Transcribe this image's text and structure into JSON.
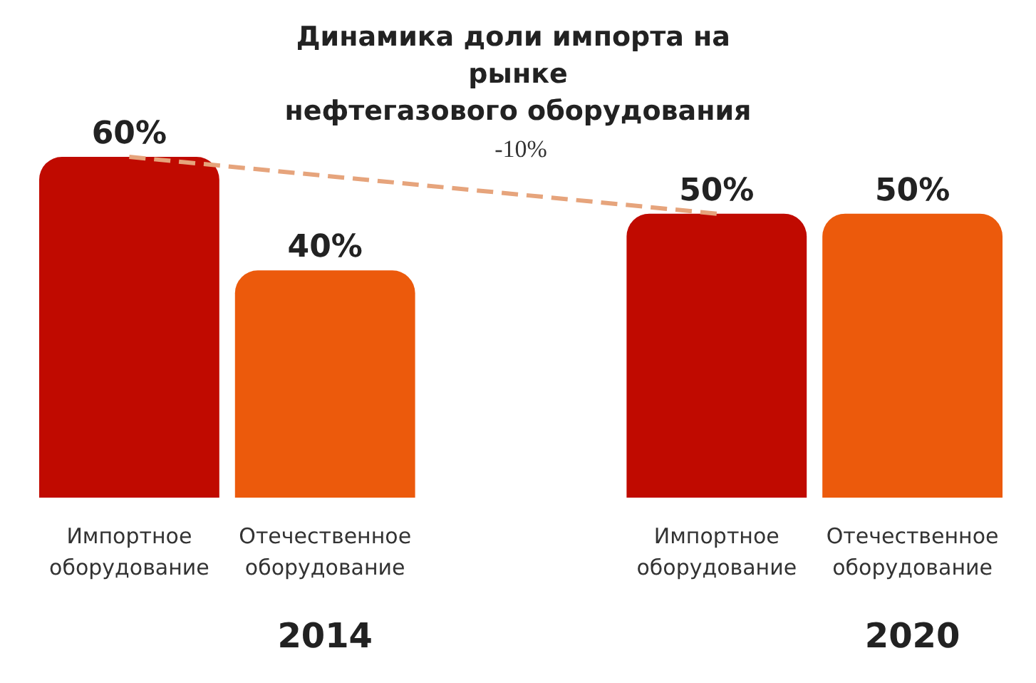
{
  "chart_data": {
    "type": "bar",
    "title": "Динамика доли импорта на рынке нефтегазового оборудования",
    "categories": [
      "Импортное оборудование",
      "Отечественное оборудование",
      null,
      "Импортное оборудование",
      "Отечественное оборудование"
    ],
    "series": [
      {
        "colors": [
          "#c00a00",
          "#ec5a0c",
          null,
          "#c00a00",
          "#ec5a0c"
        ],
        "values": [
          60,
          40,
          null,
          50,
          50
        ],
        "value_labels": [
          "60%",
          "40%",
          null,
          "50%",
          "50%"
        ]
      },
      {
        "type": "line",
        "color": "#e6a47c",
        "values": [
          60,
          null,
          null,
          50,
          null
        ],
        "line_style": "dashed",
        "marker": "none"
      }
    ],
    "annotations": [
      "-10%",
      "2014",
      "2020"
    ],
    "grid": false
  }
}
